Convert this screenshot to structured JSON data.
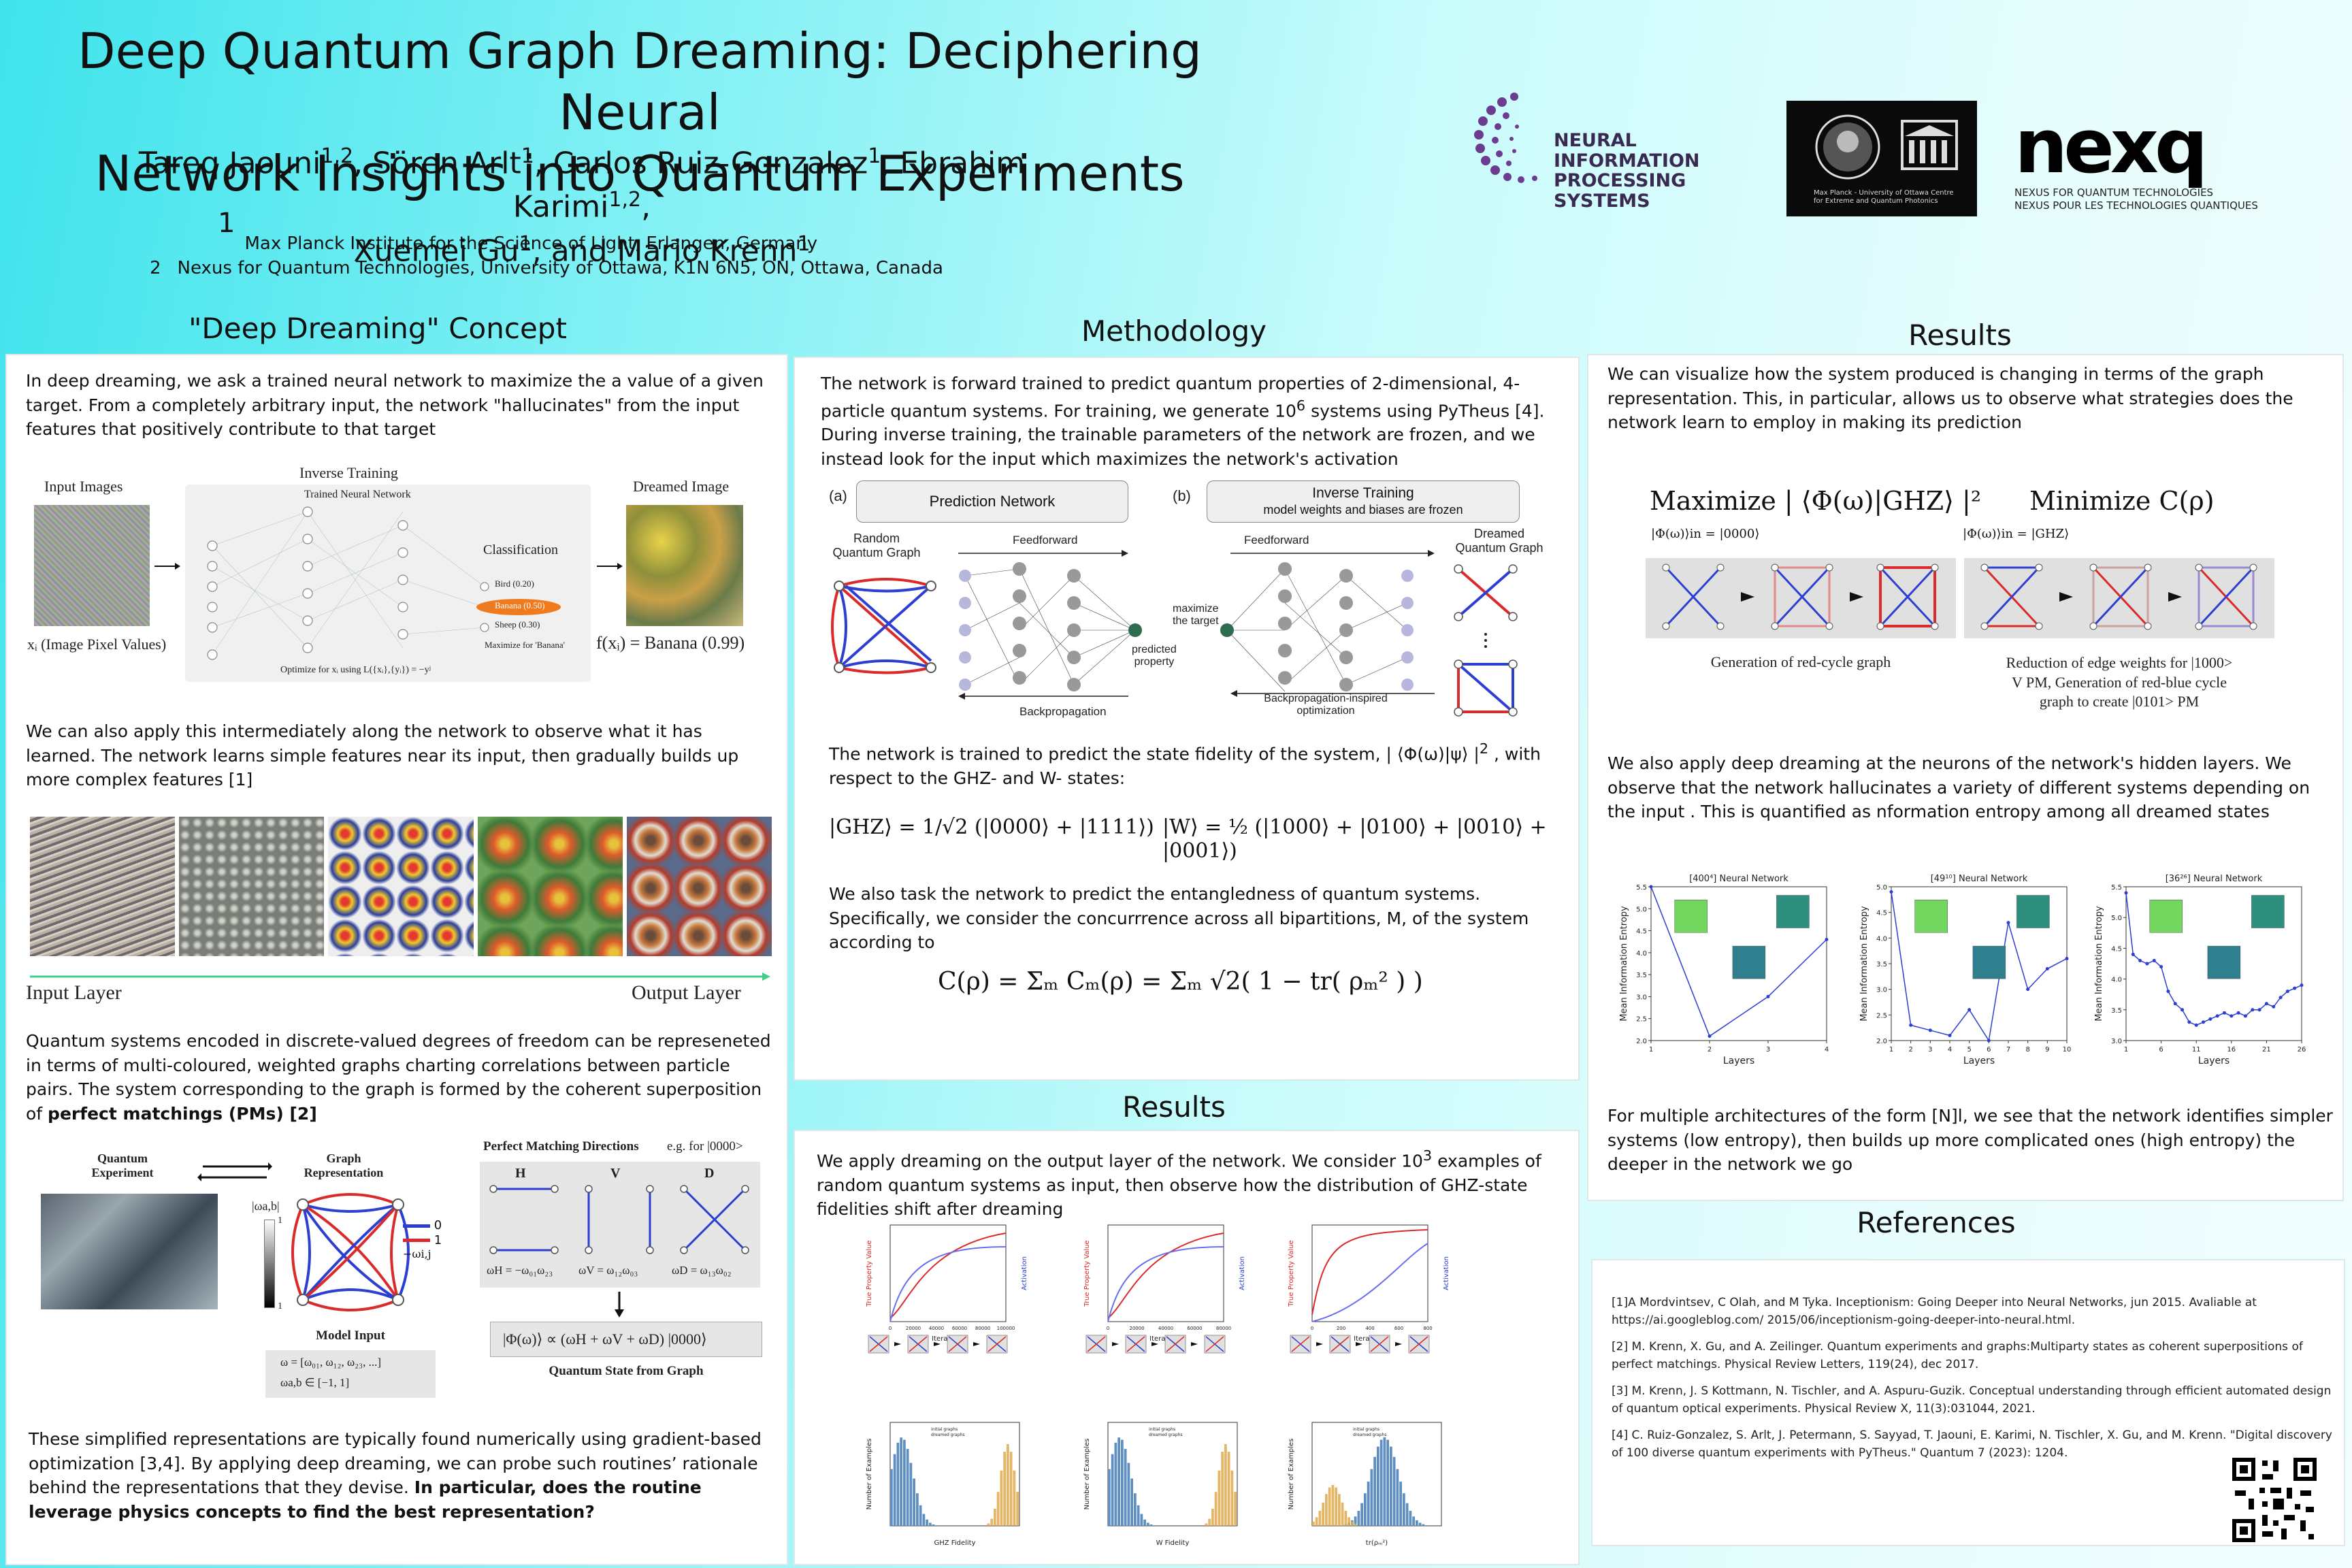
{
  "header": {
    "title_line1": "Deep Quantum Graph Dreaming: Deciphering Neural",
    "title_line2": "Network Insights into Quantum Experiments",
    "authors": [
      {
        "name": "Tareq Jaouni",
        "sup": "1,2"
      },
      {
        "name": "Sören Arlt",
        "sup": "1"
      },
      {
        "name": "Carlos Ruiz-Gonzalez",
        "sup": "1"
      },
      {
        "name": "Ebrahim Karimi",
        "sup": "1,2"
      },
      {
        "name": "Xuemei Gu",
        "sup": "1"
      },
      {
        "name": "Mario Krenn",
        "sup": "1"
      }
    ],
    "affiliations": [
      {
        "num": "1",
        "text": "Max Planck Institute for the Science of Light, Erlangen, Germany"
      },
      {
        "num": "2",
        "text": "Nexus for Quantum Technologies, University of Ottawa, K1N 6N5, ON, Ottawa, Canada"
      }
    ]
  },
  "logos": {
    "neurips_line1": "NEURAL INFORMATION",
    "neurips_line2": "PROCESSING SYSTEMS",
    "mpl_caption_line1": "Max Planck - University of Ottawa Centre",
    "mpl_caption_line2": "for Extreme and Quantum Photonics",
    "nexq_word": "nexq",
    "nexq_sub1": "NEXUS FOR QUANTUM TECHNOLOGIES",
    "nexq_sub2": "NEXUS POUR LES TECHNOLOGIES QUANTIQUES"
  },
  "concept": {
    "heading": "\"Deep Dreaming\" Concept",
    "p1": "In deep dreaming, we ask a trained neural network to maximize the a value of a given target. From a completely arbitrary input, the network \"hallucinates\" from the input features that positively contribute to that target",
    "fig1": {
      "input_images": "Input Images",
      "inverse_training": "Inverse Training",
      "trained_nn": "Trained Neural Network",
      "classification": "Classification",
      "bird": "Bird (0.20)",
      "banana": "Banana (0.50)",
      "sheep": "Sheep (0.30)",
      "maximize": "Maximize for 'Banana'",
      "dreamed_image": "Dreamed Image",
      "xi_label": "xᵢ (Image Pixel Values)",
      "optimize": "Optimize for xᵢ using L({xᵢ},{yᵢ}) = −yʲ",
      "fx": "f(xᵢ) = Banana (0.99)"
    },
    "p2": "We can also apply this intermediately along the network to observe what it has learned. The network learns simple features near its input, then gradually builds up more complex features [1]",
    "input_layer": "Input Layer",
    "output_layer": "Output Layer",
    "p3_a": "Quantum systems encoded in discrete-valued degrees of freedom can be represeneted in terms of  multi-coloured, weighted graphs charting correlations between particle pairs.  The system corresponding to the graph is formed by the coherent superposition of ",
    "p3_b": "perfect matchings (PMs) [2]",
    "fig2": {
      "quantum_experiment": "Quantum Experiment",
      "graph_representation": "Graph Representation",
      "pm_directions": "Perfect Matching Directions",
      "pm_eg": "e.g. for |0000>",
      "h": "H",
      "v": "V",
      "d": "D",
      "wab": "|ωa,b|",
      "model_input": "Model Input",
      "omega_vec": "ω = [ω₀₁, ω₁₂, ω₂₃, ...]",
      "omega_range": "ωa,b ∈ [−1, 1]",
      "state_eq": "|Φ(ω)⟩ ∝ (ωH + ωV + ωD) |0000⟩",
      "state_from_graph": "Quantum State from Graph",
      "wh": "ωH = −ω₀₁ω₂₃",
      "wv": "ωV = ω₁₂ω₀₃",
      "wd": "ωD = ω₁₃ω₀₂",
      "leg0": "0",
      "leg1": "1",
      "legw": "−ωi,j",
      "scale_top": "1",
      "scale_bot": "1"
    },
    "p4_a": "These simplified representations are typically found numerically using gradient-based optimization [3,4]. By applying deep dreaming, we can probe such routines’ rationale behind the representations that they devise. ",
    "p4_b": "In particular, does the routine leverage physics concepts to find the best representation?"
  },
  "methodology": {
    "heading": "Methodology",
    "p1_a": "The network is forward trained to predict quantum properties of 2-dimensional, 4-particle quantum systems. For training, we generate 10",
    "p1_sup": "6",
    "p1_b": " systems using PyTheus [4]. During inverse training, the trainable parameters of the network are frozen, and we instead look for the input which maximizes the network's activation",
    "fig": {
      "a": "(a)",
      "b": "(b)",
      "prediction_network": "Prediction Network",
      "inverse_training": "Inverse Training",
      "frozen": "model weights and biases are frozen",
      "random_graph_1": "Random",
      "random_graph_2": "Quantum Graph",
      "feedforward": "Feedforward",
      "backprop": "Backpropagation",
      "predicted_1": "predicted",
      "predicted_2": "property",
      "maximize_1": "maximize",
      "maximize_2": "the target",
      "feedforward_b": "Feedforward",
      "backprop_b1": "Backpropagation-inspired",
      "backprop_b2": "optimization",
      "dreamed_1": "Dreamed",
      "dreamed_2": "Quantum Graph"
    },
    "p2": "The network is trained to predict the state fidelity of the system,  | ⟨Φ(ω)|ψ⟩ |",
    "p2_sup": "2",
    "p2_b": " , with respect to the GHZ- and W- states:",
    "eq_ghz": "|GHZ⟩ = 1/√2 (|0000⟩ + |1111⟩)",
    "eq_w": "|W⟩ = ½ (|1000⟩ + |0100⟩ + |0010⟩ + |0001⟩)",
    "p3": "We also task the network to predict the entangledness of quantum systems. Specifically, we consider the concurrrence across all bipartitions, M, of the system according to",
    "eq_c": "C(ρ) = Σₘ Cₘ(ρ) = Σₘ √2( 1 − tr( ρₘ² ) )"
  },
  "results_mid": {
    "heading": "Results",
    "p1_a": "We apply dreaming on the output layer of the network. We consider 10",
    "p1_sup": "3",
    "p1_b": "  examples of random quantum systems as input, then observe how the distribution of GHZ-state fidelities shift after dreaming",
    "charts": [
      {
        "ylabel": "True Property Value",
        "y2": "Activation",
        "xlabel": "Iterations",
        "xticks": [
          "0",
          "20000",
          "40000",
          "60000",
          "80000",
          "100000"
        ]
      },
      {
        "ylabel": "True Property Value",
        "y2": "Activation",
        "xlabel": "Iterations",
        "xticks": [
          "0",
          "20000",
          "40000",
          "60000",
          "80000"
        ]
      },
      {
        "ylabel": "True Property Value",
        "y2": "Activation",
        "xlabel": "Iterations",
        "xticks": [
          "0",
          "200",
          "400",
          "600",
          "800"
        ]
      }
    ],
    "hists": [
      {
        "ylabel": "Number of Examples",
        "xlabel": "GHZ Fidelity",
        "leg1": "initial graphs",
        "leg2": "dreamed graphs"
      },
      {
        "ylabel": "Number of Examples",
        "xlabel": "W Fidelity",
        "leg1": "initial graphs",
        "leg2": "dreamed graphs"
      },
      {
        "ylabel": "Number of Examples",
        "xlabel": "tr(ρₘ²)",
        "leg1": "initial graphs",
        "leg2": "dreamed graphs"
      }
    ]
  },
  "results_right": {
    "heading": "Results",
    "p1": "We can visualize how the system produced is changing in terms of the graph representation. This, in particular, allows us to observe what strategies does the network learn to employ  in making its prediction",
    "maximize": "Maximize  | ⟨Φ(ω)|GHZ⟩ |²",
    "minimize": "Minimize C(ρ)",
    "init1": "|Φ(ω)⟩in = |0000⟩",
    "init2": "|Φ(ω)⟩in = |GHZ⟩",
    "cap1": "Generation of red-cycle graph",
    "cap2_1": "Reduction of edge weights for |1000>",
    "cap2_2": "V PM, Generation of red-blue cycle",
    "cap2_3": "graph to create |0101> PM",
    "p2": "We also apply deep dreaming at the neurons  of the network's hidden layers. We observe that the network hallucinates a variety of different systems depending on the input . This is quantified as nformation entropy among all dreamed states",
    "p3": "For multiple architectures of the form [N]l, we see that the network identifies simpler systems (low entropy), then builds up more complicated ones (high entropy) the deeper in the network we go"
  },
  "chart_data": [
    {
      "type": "line",
      "title": "[400⁴] Neural Network",
      "xlabel": "Layers",
      "ylabel": "Mean Information Entropy",
      "x": [
        1,
        2,
        3,
        4
      ],
      "y": [
        5.5,
        2.1,
        3.0,
        4.3
      ],
      "ylim": [
        2.0,
        5.5
      ]
    },
    {
      "type": "line",
      "title": "[49¹⁰] Neural Network",
      "xlabel": "Layers",
      "ylabel": "Mean Information Entropy",
      "x": [
        1,
        2,
        3,
        4,
        5,
        6,
        7,
        8,
        9,
        10
      ],
      "y": [
        4.9,
        2.3,
        2.2,
        2.1,
        2.6,
        2.0,
        4.3,
        3.0,
        3.4,
        3.6
      ],
      "ylim": [
        2.0,
        5.0
      ]
    },
    {
      "type": "line",
      "title": "[36²⁶] Neural Network",
      "xlabel": "Layers",
      "ylabel": "Mean Information Entropy",
      "x": [
        1,
        2,
        3,
        4,
        5,
        6,
        7,
        8,
        9,
        10,
        11,
        12,
        13,
        14,
        15,
        16,
        17,
        18,
        19,
        20,
        21,
        22,
        23,
        24,
        25,
        26
      ],
      "y": [
        5.4,
        4.4,
        4.3,
        4.25,
        4.3,
        4.2,
        3.8,
        3.6,
        3.5,
        3.3,
        3.25,
        3.3,
        3.35,
        3.4,
        3.45,
        3.4,
        3.45,
        3.4,
        3.5,
        3.5,
        3.6,
        3.55,
        3.7,
        3.8,
        3.85,
        3.9
      ],
      "ylim": [
        3.0,
        5.5
      ]
    }
  ],
  "references": {
    "heading": "References",
    "items": [
      "[1]A Mordvintsev, C Olah, and M Tyka. Inceptionism: Going Deeper into Neural Networks, jun 2015. Avaliable at https://ai.googleblog.com/ 2015/06/inceptionism-going-deeper-into-neural.html.",
      "[2] M. Krenn, X. Gu, and A.  Zeilinger. Quantum experiments and graphs:Multiparty states as coherent superpositions of perfect matchings. Physical Review Letters, 119(24), dec 2017.",
      "[3] M. Krenn, J. S Kottmann, N. Tischler, and A. Aspuru-Guzik. Conceptual understanding through efficient automated design of quantum optical experiments. Physical Review X, 11(3):031044, 2021.",
      "[4] C. Ruiz-Gonzalez,  S. Arlt, J. Petermann, S. Sayyad, T. Jaouni, E. Karimi, N. Tischler, X. Gu, and M. Krenn. \"Digital discovery of 100 diverse quantum experiments with PyTheus.\" Quantum 7 (2023): 1204."
    ]
  },
  "colors": {
    "accent_cyan": "#3fe3ec",
    "red": "#d92b2b",
    "blue": "#2d3fd0",
    "orange": "#f07b1e",
    "purple": "#6b3c8f"
  }
}
